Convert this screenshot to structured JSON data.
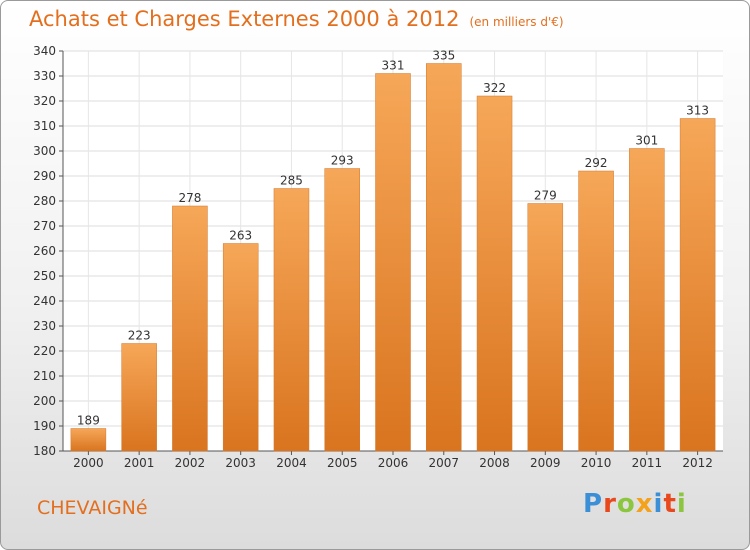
{
  "title": "Achats et Charges Externes 2000 à 2012",
  "unit": "(en milliers d'€)",
  "town": "CHEVAIGNé",
  "logo": "Proxiti",
  "colors": {
    "bar_top": "#f6a758",
    "bar_bottom": "#d9741f",
    "title": "#e36f1e"
  },
  "chart_data": {
    "type": "bar",
    "title": "Achats et Charges Externes 2000 à 2012",
    "xlabel": "",
    "ylabel": "",
    "categories": [
      "2000",
      "2001",
      "2002",
      "2003",
      "2004",
      "2005",
      "2006",
      "2007",
      "2008",
      "2009",
      "2010",
      "2011",
      "2012"
    ],
    "values": [
      189,
      223,
      278,
      263,
      285,
      293,
      331,
      335,
      322,
      279,
      292,
      301,
      313
    ],
    "ylim": [
      180,
      340
    ],
    "yticks": [
      180,
      190,
      200,
      210,
      220,
      230,
      240,
      250,
      260,
      270,
      280,
      290,
      300,
      310,
      320,
      330,
      340
    ],
    "grid": true,
    "legend": "none"
  }
}
